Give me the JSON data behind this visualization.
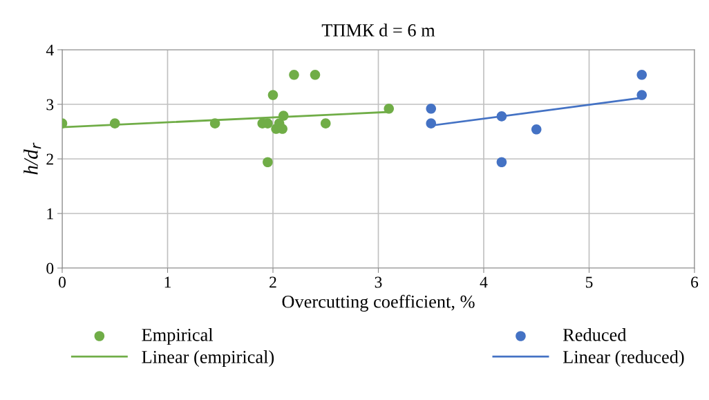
{
  "chart_data": {
    "type": "scatter",
    "title": "ТПМК d = 6 m",
    "xlabel": "Overcutting coefficient, %",
    "ylabel": "h/d$_{r}$",
    "xlim": [
      0,
      6
    ],
    "xticks": [
      0,
      1,
      2,
      3,
      4,
      5,
      6
    ],
    "ylim": [
      0,
      4
    ],
    "yticks": [
      0,
      1,
      2,
      3,
      4
    ],
    "grid": true,
    "legend": "bottom",
    "marker": "circle",
    "series": [
      {
        "name": "Empirical",
        "color": "#70ad47",
        "x": [
          0,
          0.5,
          1.45,
          1.9,
          1.95,
          2.03,
          2.06,
          2.1,
          2.03,
          2.09,
          2.0,
          2.2,
          2.4,
          2.5,
          3.1,
          1.95
        ],
        "values": [
          2.65,
          2.65,
          2.65,
          2.65,
          2.65,
          null,
          2.65,
          2.79,
          2.55,
          2.55,
          3.17,
          3.54,
          3.54,
          2.65,
          2.92,
          1.94
        ]
      },
      {
        "name": "Reduced",
        "color": "#4472c4",
        "x": [
          3.5,
          3.5,
          4.17,
          4.5,
          4.17,
          5.5,
          5.5
        ],
        "values": [
          2.92,
          2.65,
          2.78,
          2.54,
          1.94,
          3.54,
          3.17
        ]
      },
      {
        "name": "Linear (empirical)",
        "type": "line",
        "color": "#70ad47",
        "line_style": "solid",
        "marker": "none",
        "x": [
          0,
          3.1
        ],
        "values": [
          2.58,
          2.86
        ]
      },
      {
        "name": "Linear (reduced)",
        "type": "line",
        "color": "#4472c4",
        "line_style": "solid",
        "marker": "none",
        "x": [
          3.5,
          5.5
        ],
        "values": [
          2.61,
          3.12
        ]
      }
    ]
  }
}
